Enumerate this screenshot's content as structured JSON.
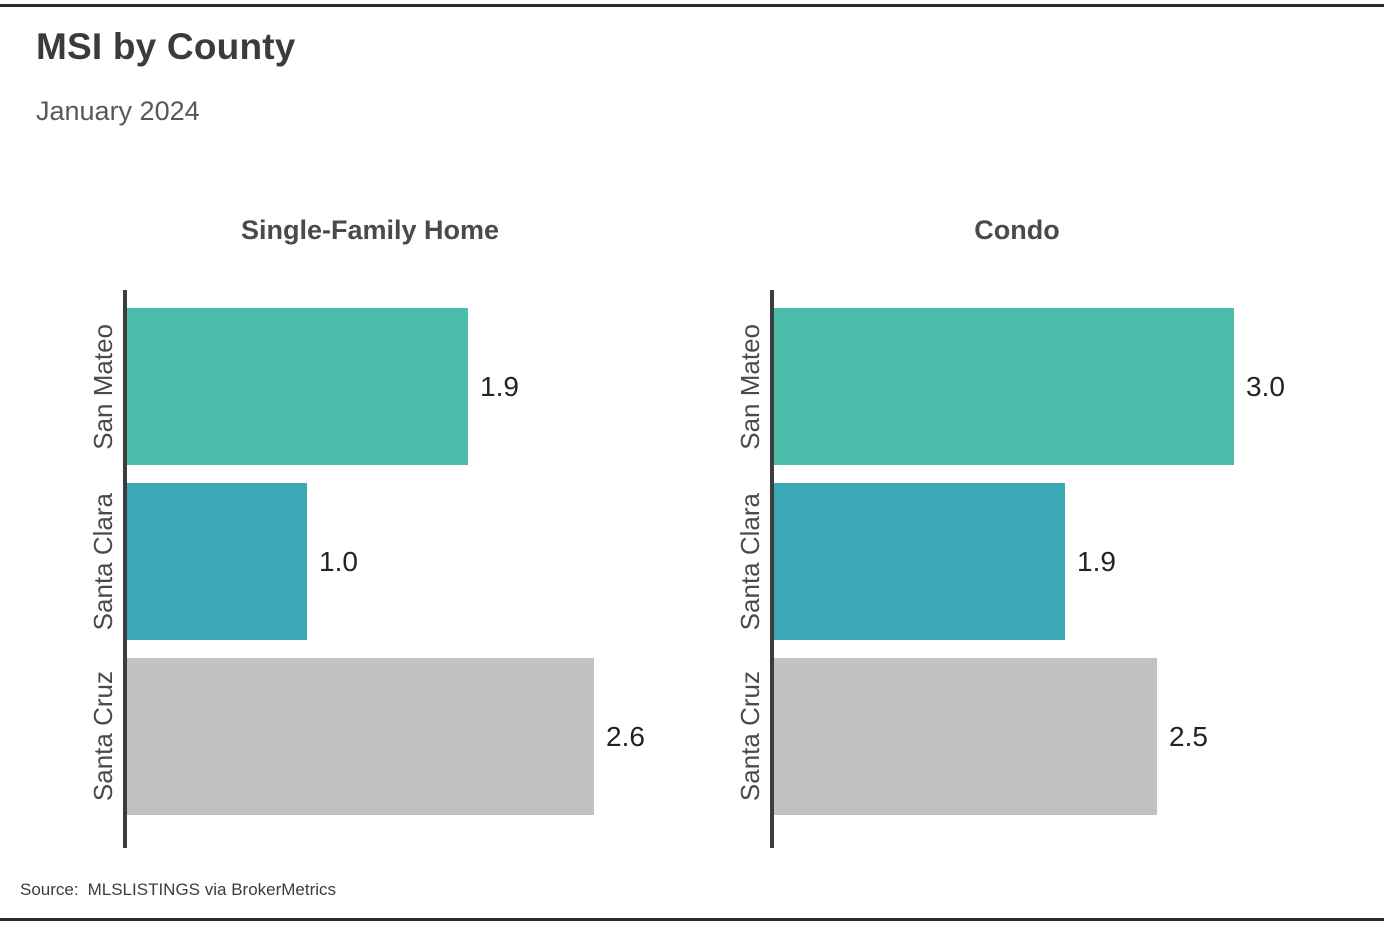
{
  "page": {
    "title": "MSI by County",
    "subtitle": "January 2024",
    "source_label": "Source:",
    "source_text": "MLSLISTINGS via BrokerMetrics"
  },
  "colors": {
    "bar_teal_green": "#4CBDAB",
    "bar_dark_teal": "#3AA8B5",
    "bar_gray": "#C2C2C2",
    "axis": "#3D3D3D",
    "title_text": "#3B3B3B",
    "subtitle_text": "#58585A",
    "value_text": "#232323",
    "rule": "#2B2B2B"
  },
  "chart_data": [
    {
      "type": "bar",
      "orientation": "horizontal",
      "title": "Single-Family Home",
      "categories": [
        "San Mateo",
        "Santa Clara",
        "Santa Cruz"
      ],
      "values": [
        1.9,
        1.0,
        2.6
      ],
      "value_labels": [
        "1.9",
        "1.0",
        "2.6"
      ],
      "bar_colors": [
        "#4CBDAB",
        "#3AA8B5",
        "#C2C2C2"
      ],
      "xlim": [
        0,
        2.6
      ],
      "grid": false,
      "legend": "none",
      "value_label_position": "end-of-bar"
    },
    {
      "type": "bar",
      "orientation": "horizontal",
      "title": "Condo",
      "categories": [
        "San Mateo",
        "Santa Clara",
        "Santa Cruz"
      ],
      "values": [
        3.0,
        1.9,
        2.5
      ],
      "value_labels": [
        "3.0",
        "1.9",
        "2.5"
      ],
      "bar_colors": [
        "#4CBDAB",
        "#3AA8B5",
        "#C2C2C2"
      ],
      "xlim": [
        0,
        3.0
      ],
      "grid": false,
      "legend": "none",
      "value_label_position": "end-of-bar"
    }
  ]
}
